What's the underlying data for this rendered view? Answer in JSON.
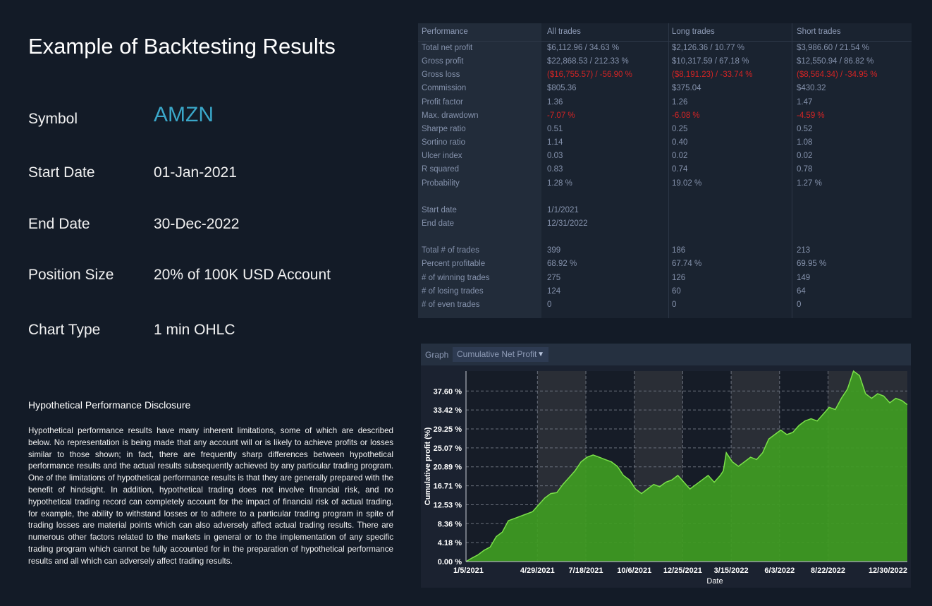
{
  "title": "Example of Backtesting Results",
  "fields": [
    {
      "label": "Symbol",
      "value": "AMZN"
    },
    {
      "label": "Start Date",
      "value": "01-Jan-2021"
    },
    {
      "label": "End Date",
      "value": "30-Dec-2022"
    },
    {
      "label": "Position Size",
      "value": "20% of 100K USD Account"
    },
    {
      "label": "Chart Type",
      "value": "1 min OHLC"
    }
  ],
  "disclosure": {
    "heading": "Hypothetical Performance Disclosure",
    "body": "Hypothetical performance results have many inherent limitations, some of which are described below. No representation is being made that any account will or is likely to achieve profits or losses similar to those shown; in fact, there are frequently sharp differences between hypothetical performance results and the actual results subsequently achieved by any particular trading program. One of the limitations of hypothetical performance results is that they are generally prepared with the benefit of hindsight. In addition, hypothetical trading does not involve financial risk, and no hypothetical trading record can completely account for the impact of financial risk of actual trading. for example, the ability to withstand losses or to adhere to a particular trading program in spite of trading losses are material points which can also adversely affect actual trading results. There are numerous other factors related to the markets in general or to the implementation of any specific trading program which cannot be fully accounted for in the preparation of hypothetical performance results and all which can adversely affect trading results."
  },
  "stats": {
    "headers": [
      "Performance",
      "All trades",
      "Long trades",
      "Short trades"
    ],
    "rows": [
      {
        "label": "Total net profit",
        "all": "$6,112.96 / 34.63 %",
        "long": "$2,126.36 / 10.77 %",
        "short": "$3,986.60 / 21.54 %"
      },
      {
        "label": "Gross profit",
        "all": "$22,868.53 / 212.33 %",
        "long": "$10,317.59 / 67.18 %",
        "short": "$12,550.94 / 86.82 %"
      },
      {
        "label": "Gross loss",
        "all": "($16,755.57) / -56.90 %",
        "long": "($8,191.23) / -33.74 %",
        "short": "($8,564.34) / -34.95 %",
        "negative": true
      },
      {
        "label": "Commission",
        "all": "$805.36",
        "long": "$375.04",
        "short": "$430.32"
      },
      {
        "label": "Profit factor",
        "all": "1.36",
        "long": "1.26",
        "short": "1.47"
      },
      {
        "label": "Max. drawdown",
        "all": "-7.07 %",
        "long": "-6.08 %",
        "short": "-4.59 %",
        "negative": true
      },
      {
        "label": "Sharpe ratio",
        "all": "0.51",
        "long": "0.25",
        "short": "0.52"
      },
      {
        "label": "Sortino ratio",
        "all": "1.14",
        "long": "0.40",
        "short": "1.08"
      },
      {
        "label": "Ulcer index",
        "all": "0.03",
        "long": "0.02",
        "short": "0.02"
      },
      {
        "label": "R squared",
        "all": "0.83",
        "long": "0.74",
        "short": "0.78"
      },
      {
        "label": "Probability",
        "all": "1.28 %",
        "long": "19.02 %",
        "short": "1.27 %"
      },
      {
        "label": "",
        "all": "",
        "long": "",
        "short": ""
      },
      {
        "label": "Start date",
        "all": "1/1/2021",
        "long": "",
        "short": ""
      },
      {
        "label": "End date",
        "all": "12/31/2022",
        "long": "",
        "short": ""
      },
      {
        "label": "",
        "all": "",
        "long": "",
        "short": ""
      },
      {
        "label": "Total # of trades",
        "all": "399",
        "long": "186",
        "short": "213"
      },
      {
        "label": "Percent profitable",
        "all": "68.92 %",
        "long": "67.74 %",
        "short": "69.95 %"
      },
      {
        "label": "# of winning trades",
        "all": "275",
        "long": "126",
        "short": "149"
      },
      {
        "label": "# of losing trades",
        "all": "124",
        "long": "60",
        "short": "64"
      },
      {
        "label": "# of even trades",
        "all": "0",
        "long": "0",
        "short": "0"
      }
    ]
  },
  "graph": {
    "bar_label": "Graph",
    "dropdown_value": "Cumulative Net Profit",
    "dropdown_icon": "chevron-down-icon"
  },
  "chart_data": {
    "type": "area",
    "title": "Cumulative Net Profit",
    "xlabel": "Date",
    "ylabel": "Cumulative profit (%)",
    "ylim": [
      0,
      42
    ],
    "xlim": [
      0,
      729
    ],
    "y_ticks": [
      "0.00 %",
      "4.18 %",
      "8.36 %",
      "12.53 %",
      "16.71 %",
      "20.89 %",
      "25.07 %",
      "29.25 %",
      "33.42 %",
      "37.60 %"
    ],
    "y_tick_values": [
      0,
      4.18,
      8.36,
      12.53,
      16.71,
      20.89,
      25.07,
      29.25,
      33.42,
      37.6
    ],
    "x_ticks": [
      "1/5/2021",
      "4/29/2021",
      "7/18/2021",
      "10/6/2021",
      "12/25/2021",
      "3/15/2022",
      "6/3/2022",
      "8/22/2022",
      "12/30/2022"
    ],
    "x_tick_days": [
      4,
      118,
      198,
      278,
      358,
      438,
      518,
      598,
      729
    ],
    "grid": true,
    "fill_color": "#3f9c22",
    "line_color": "#7be04a",
    "series": [
      {
        "name": "Cumulative Net Profit",
        "x_days": [
          0,
          10,
          20,
          30,
          40,
          50,
          60,
          70,
          80,
          90,
          100,
          110,
          120,
          130,
          140,
          150,
          160,
          170,
          180,
          190,
          200,
          210,
          220,
          230,
          240,
          250,
          260,
          270,
          280,
          290,
          300,
          310,
          320,
          330,
          340,
          350,
          360,
          370,
          380,
          390,
          400,
          410,
          420,
          425,
          430,
          440,
          450,
          460,
          470,
          480,
          490,
          500,
          510,
          520,
          530,
          540,
          550,
          560,
          570,
          580,
          590,
          600,
          610,
          620,
          630,
          640,
          650,
          660,
          670,
          680,
          690,
          700,
          710,
          720,
          729
        ],
        "values": [
          0,
          0.8,
          1.5,
          2.5,
          3.2,
          5.5,
          6.5,
          9,
          9.5,
          10,
          10.5,
          11,
          12.5,
          14,
          15,
          15.2,
          17,
          18.5,
          20,
          22,
          23,
          23.5,
          23,
          22.5,
          22,
          21,
          19,
          18,
          16,
          15,
          16,
          17,
          16.5,
          17.5,
          18,
          19,
          17.5,
          16,
          17,
          18,
          19,
          17.5,
          19,
          20,
          24,
          22,
          21,
          22,
          23,
          22.5,
          24,
          27,
          28,
          29,
          28,
          28.5,
          30,
          31,
          31.5,
          31,
          32.5,
          34,
          33.5,
          36,
          38,
          42,
          41,
          37,
          36,
          37,
          36.5,
          35,
          36,
          35.5,
          34.6
        ]
      }
    ]
  }
}
